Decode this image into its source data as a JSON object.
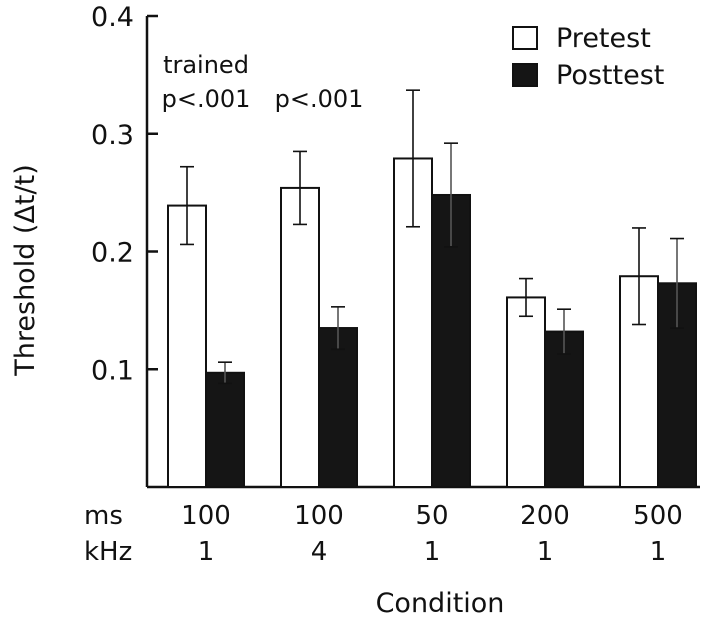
{
  "chart_data": {
    "type": "bar",
    "title": "",
    "xlabel": "Condition",
    "ylabel": "Threshold (Δt/t)",
    "ylim": [
      0,
      0.4
    ],
    "yticks": [
      {
        "value": 0.1,
        "label": "0.1"
      },
      {
        "value": 0.2,
        "label": "0.2"
      },
      {
        "value": 0.3,
        "label": "0.3"
      },
      {
        "value": 0.4,
        "label": "0.4"
      }
    ],
    "row_headers": {
      "ms": "ms",
      "khz": "kHz"
    },
    "categories": [
      {
        "ms": "100",
        "khz": "1"
      },
      {
        "ms": "100",
        "khz": "4"
      },
      {
        "ms": "50",
        "khz": "1"
      },
      {
        "ms": "200",
        "khz": "1"
      },
      {
        "ms": "500",
        "khz": "1"
      }
    ],
    "series": [
      {
        "name": "Pretest",
        "color": "#ffffff",
        "values": [
          0.239,
          0.254,
          0.279,
          0.161,
          0.179
        ],
        "errors": [
          0.033,
          0.031,
          0.058,
          0.016,
          0.041
        ]
      },
      {
        "name": "Posttest",
        "color": "#151515",
        "values": [
          0.097,
          0.135,
          0.248,
          0.132,
          0.173
        ],
        "errors": [
          0.009,
          0.018,
          0.044,
          0.019,
          0.038
        ]
      }
    ],
    "legend_position": "top-right",
    "annotations": {
      "trained": "trained",
      "p_values": [
        "p<.001",
        "p<.001"
      ]
    }
  }
}
